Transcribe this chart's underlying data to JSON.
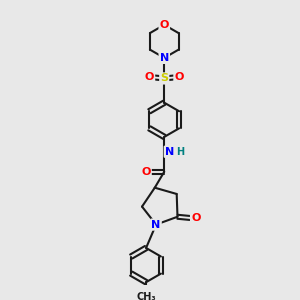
{
  "background_color": "#e8e8e8",
  "atom_colors": {
    "C": "#1a1a1a",
    "N": "#0000ff",
    "O": "#ff0000",
    "S": "#cccc00",
    "H": "#008080"
  },
  "bond_color": "#1a1a1a",
  "lw": 1.5
}
